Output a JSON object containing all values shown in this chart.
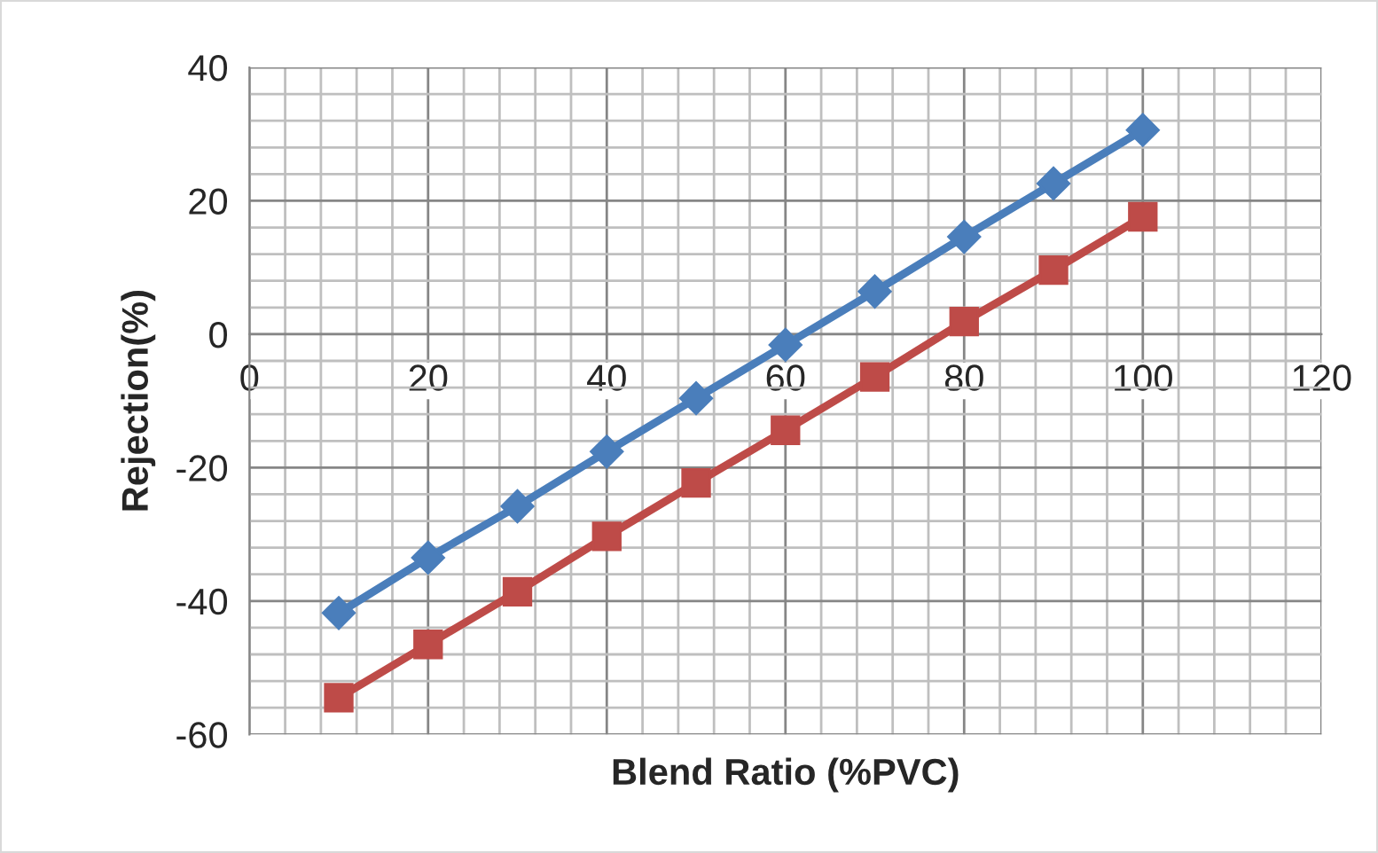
{
  "chart_data": {
    "type": "line",
    "xlabel": "Blend Ratio (%PVC)",
    "ylabel": "Rejection(%)",
    "x": [
      10,
      20,
      30,
      40,
      50,
      60,
      70,
      80,
      90,
      100
    ],
    "series": [
      {
        "color": "#4a7ebb",
        "marker": "diamond",
        "values": [
          -41.8,
          -33.5,
          -25.8,
          -17.6,
          -9.6,
          -1.6,
          6.4,
          14.6,
          22.6,
          30.6
        ]
      },
      {
        "color": "#be4b48",
        "marker": "square",
        "values": [
          -54.5,
          -46.5,
          -38.6,
          -30.3,
          -22.3,
          -14.4,
          -6.4,
          1.9,
          9.6,
          17.6
        ]
      }
    ],
    "xlim": [
      0,
      120
    ],
    "xticks": [
      0,
      20,
      40,
      60,
      80,
      100,
      120
    ],
    "ylim": [
      -60,
      40
    ],
    "yticks": [
      -60,
      -40,
      -20,
      0,
      20,
      40
    ],
    "grid": true,
    "line_style": "solid"
  }
}
